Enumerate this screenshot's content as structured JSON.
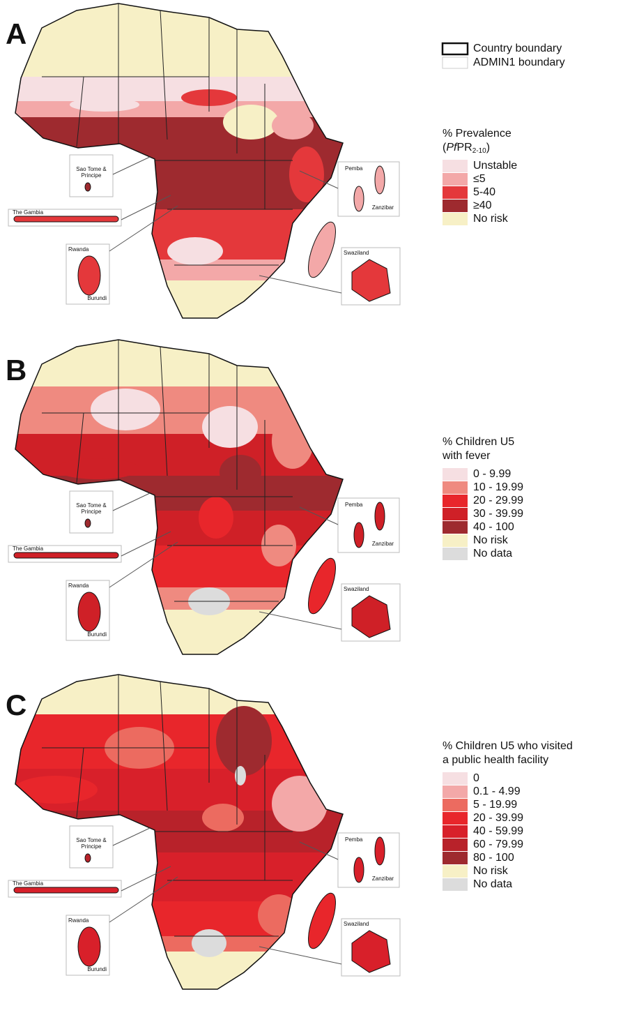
{
  "panels": [
    {
      "letter": "A",
      "boundary_legend": [
        {
          "label": "Country boundary"
        },
        {
          "label": "ADMIN1 boundary"
        }
      ],
      "legend_title": [
        "% Prevalence",
        [
          "(",
          "Pf",
          "PR",
          "2-10",
          ")"
        ]
      ],
      "legend": [
        {
          "label": "Unstable",
          "color": "#f6dfe2"
        },
        {
          "label": "≤5",
          "color": "#f3a8a8"
        },
        {
          "label": "5-40",
          "color": "#e4383b"
        },
        {
          "label": "≥40",
          "color": "#9e2a2f"
        },
        {
          "label": "No risk",
          "color": "#f7f0c6"
        }
      ],
      "insets": {
        "sao_tome": [
          "Sao Tome &",
          "Principe"
        ],
        "gambia": "The Gambia",
        "rwanda": "Rwanda",
        "burundi": "Burundi",
        "pemba": "Pemba",
        "zanzibar": "Zanzibar",
        "swaziland": "Swaziland"
      }
    },
    {
      "letter": "B",
      "legend_title": [
        "% Children U5",
        "with fever"
      ],
      "legend": [
        {
          "label": "0 - 9.99",
          "color": "#f6dfe2"
        },
        {
          "label": "10 - 19.99",
          "color": "#ef8a80"
        },
        {
          "label": "20 - 29.99",
          "color": "#e8262b"
        },
        {
          "label": "30 - 39.99",
          "color": "#cf2027"
        },
        {
          "label": "40 - 100",
          "color": "#9e2a2f"
        },
        {
          "label": "No risk",
          "color": "#f7f0c6"
        },
        {
          "label": "No data",
          "color": "#dcdcdc"
        }
      ],
      "insets": {
        "sao_tome": [
          "Sao Tome &",
          "Principe"
        ],
        "gambia": "The Gambia",
        "rwanda": "Rwanda",
        "burundi": "Burundi",
        "pemba": "Pemba",
        "zanzibar": "Zanzibar",
        "swaziland": "Swaziland"
      }
    },
    {
      "letter": "C",
      "legend_title": [
        "% Children U5 who visited",
        "a public health facility"
      ],
      "legend": [
        {
          "label": "0",
          "color": "#f6dfe2"
        },
        {
          "label": "0.1 - 4.99",
          "color": "#f3a8a8"
        },
        {
          "label": "5 - 19.99",
          "color": "#ec6b60"
        },
        {
          "label": "20 - 39.99",
          "color": "#e8262b"
        },
        {
          "label": "40 - 59.99",
          "color": "#d8202a"
        },
        {
          "label": "60 - 79.99",
          "color": "#b8222a"
        },
        {
          "label": "80 - 100",
          "color": "#9e2a2f"
        },
        {
          "label": "No risk",
          "color": "#f7f0c6"
        },
        {
          "label": "No data",
          "color": "#dcdcdc"
        }
      ],
      "insets": {
        "sao_tome": [
          "Sao Tome &",
          "Principe"
        ],
        "gambia": "The Gambia",
        "rwanda": "Rwanda",
        "burundi": "Burundi",
        "pemba": "Pemba",
        "zanzibar": "Zanzibar",
        "swaziland": "Swaziland"
      }
    }
  ]
}
